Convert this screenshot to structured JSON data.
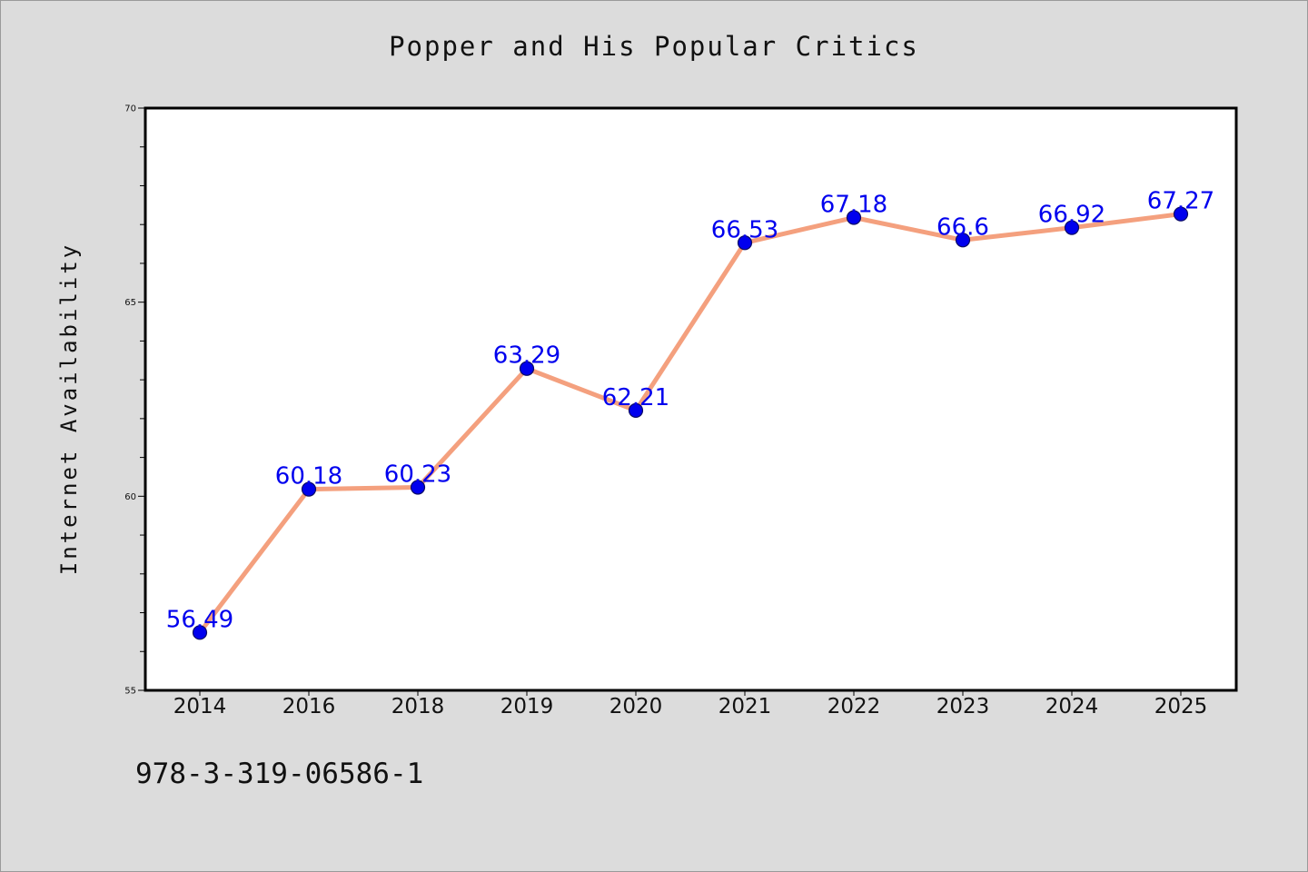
{
  "chart_data": {
    "type": "line",
    "title": "Popper and His Popular Critics",
    "xlabel": "",
    "ylabel": "Internet Availability",
    "categories": [
      "2014",
      "2016",
      "2018",
      "2019",
      "2020",
      "2021",
      "2022",
      "2023",
      "2024",
      "2025"
    ],
    "series": [
      {
        "values": [
          56.49,
          60.18,
          60.23,
          63.29,
          62.21,
          66.53,
          67.18,
          66.6,
          66.92,
          67.27
        ],
        "data_labels": [
          "56.49",
          "60.18",
          "60.23",
          "63.29",
          "62.21",
          "66.53",
          "67.18",
          "66.6",
          "66.92",
          "67.27"
        ]
      }
    ],
    "ylim": [
      55,
      70
    ],
    "yticks": [
      "55",
      "60",
      "65",
      "70"
    ],
    "grid": false,
    "legend": "none",
    "colors": {
      "line": "#f4a07e",
      "marker": "#0000ee",
      "marker_edge": "#0b0b66",
      "data_label": "#0000ee",
      "background": "#dcdcdc",
      "plot_background": "#ffffff"
    }
  },
  "footer": {
    "code": "978-3-319-06586-1"
  }
}
